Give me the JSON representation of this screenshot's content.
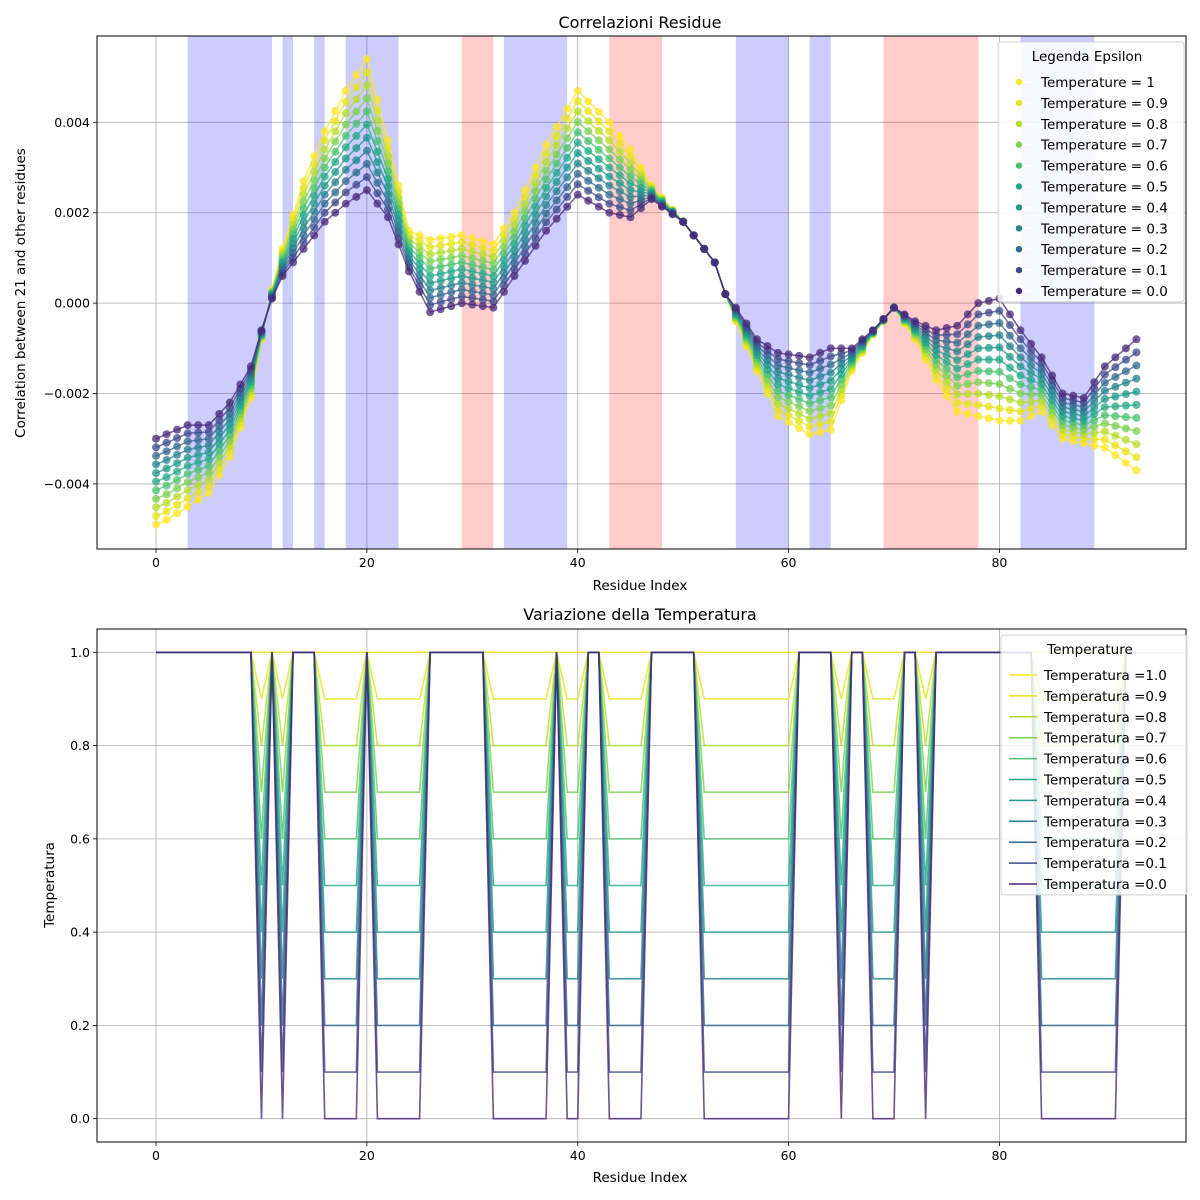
{
  "chart_data": [
    {
      "type": "line",
      "title": "Correlazioni Residue",
      "xlabel": "Residue Index",
      "ylabel": "Correlation between 21 and other residues",
      "xlim": [
        -5.6,
        97.7
      ],
      "ylim": [
        -0.00544,
        0.00591
      ],
      "xticks": [
        0,
        20,
        40,
        60,
        80
      ],
      "yticks": [
        -0.004,
        -0.002,
        0.0,
        0.002,
        0.004
      ],
      "ytick_labels": [
        "−0.004",
        "−0.002",
        "0.000",
        "0.002",
        "0.004"
      ],
      "grid": true,
      "markers": true,
      "legend_title": "Legenda Epsilon",
      "legend_position": "top-right",
      "shaded_regions": [
        {
          "x0": 3,
          "x1": 11,
          "color": "blue"
        },
        {
          "x0": 12,
          "x1": 13,
          "color": "blue"
        },
        {
          "x0": 15,
          "x1": 16,
          "color": "blue"
        },
        {
          "x0": 18,
          "x1": 23,
          "color": "blue"
        },
        {
          "x0": 29,
          "x1": 32,
          "color": "red"
        },
        {
          "x0": 33,
          "x1": 39,
          "color": "blue"
        },
        {
          "x0": 43,
          "x1": 48,
          "color": "red"
        },
        {
          "x0": 55,
          "x1": 60,
          "color": "blue"
        },
        {
          "x0": 62,
          "x1": 64,
          "color": "blue"
        },
        {
          "x0": 69,
          "x1": 78,
          "color": "red"
        },
        {
          "x0": 82,
          "x1": 89,
          "color": "blue"
        }
      ],
      "x_range": [
        0,
        93
      ],
      "curves": {
        "x": [
          0,
          1,
          3,
          5,
          7,
          9,
          10,
          11,
          12,
          14,
          16,
          18,
          20,
          22,
          24,
          26,
          29,
          32,
          34,
          37,
          40,
          43,
          45,
          47,
          50,
          53,
          54,
          55,
          57,
          59,
          62,
          64,
          66,
          68,
          70,
          72,
          74,
          76,
          78,
          80,
          82,
          84,
          86,
          88,
          90,
          93
        ],
        "t1": [
          -0.0049,
          -0.0048,
          -0.0045,
          -0.0042,
          -0.0034,
          -0.0021,
          -0.0008,
          0.0003,
          0.0012,
          0.0027,
          0.0038,
          0.0047,
          0.0054,
          0.0036,
          0.0016,
          0.0014,
          0.0015,
          0.0013,
          0.002,
          0.0035,
          0.0047,
          0.004,
          0.0034,
          0.0026,
          0.0018,
          0.0009,
          0.0002,
          -0.0004,
          -0.0015,
          -0.0025,
          -0.0029,
          -0.0028,
          -0.0015,
          -0.0007,
          -0.0001,
          -0.0008,
          -0.0017,
          -0.0024,
          -0.0025,
          -0.0026,
          -0.0026,
          -0.0024,
          -0.003,
          -0.0031,
          -0.0032,
          -0.0037
        ],
        "t0": [
          -0.003,
          -0.0029,
          -0.0027,
          -0.0027,
          -0.0022,
          -0.0014,
          -0.0006,
          0.0001,
          0.0006,
          0.0012,
          0.0018,
          0.0022,
          0.0025,
          0.0019,
          0.0007,
          -0.0002,
          0.0,
          -0.0001,
          0.0006,
          0.0016,
          0.0024,
          0.002,
          0.0019,
          0.0023,
          0.0018,
          0.0009,
          0.0002,
          -0.0001,
          -0.0008,
          -0.0011,
          -0.0012,
          -0.001,
          -0.001,
          -0.0006,
          -0.0001,
          -0.0004,
          -0.0006,
          -0.0005,
          0.0,
          0.0001,
          -0.0006,
          -0.0012,
          -0.002,
          -0.0021,
          -0.0014,
          -0.0008
        ]
      },
      "series": [
        {
          "name": "Temperature = 1",
          "color": "#fde725"
        },
        {
          "name": "Temperature = 0.9",
          "color": "#e5e419"
        },
        {
          "name": "Temperature = 0.8",
          "color": "#b5de2b"
        },
        {
          "name": "Temperature = 0.7",
          "color": "#7ad151"
        },
        {
          "name": "Temperature = 0.6",
          "color": "#4ac16d"
        },
        {
          "name": "Temperature = 0.5",
          "color": "#22a884"
        },
        {
          "name": "Temperature = 0.4",
          "color": "#1f988b"
        },
        {
          "name": "Temperature = 0.3",
          "color": "#26828e"
        },
        {
          "name": "Temperature = 0.2",
          "color": "#31688e"
        },
        {
          "name": "Temperature = 0.1",
          "color": "#3e4989"
        },
        {
          "name": "Temperature = 0.0",
          "color": "#482878"
        }
      ]
    },
    {
      "type": "line",
      "title": "Variazione della Temperatura",
      "xlabel": "Residue Index",
      "ylabel": "Temperatura",
      "xlim": [
        -5.6,
        97.7
      ],
      "ylim": [
        -0.05,
        1.05
      ],
      "xticks": [
        0,
        20,
        40,
        60,
        80
      ],
      "yticks": [
        0.0,
        0.2,
        0.4,
        0.6,
        0.8,
        1.0
      ],
      "ytick_labels": [
        "0.0",
        "0.2",
        "0.4",
        "0.6",
        "0.8",
        "1.0"
      ],
      "grid": true,
      "legend_title": "Temperature",
      "legend_position": "top-right",
      "x_range": [
        0,
        93
      ],
      "baseline": 1.0,
      "low_regions": [
        [
          10,
          10
        ],
        [
          12,
          12
        ],
        [
          16,
          19
        ],
        [
          21,
          25
        ],
        [
          32,
          37
        ],
        [
          39,
          40
        ],
        [
          43,
          46
        ],
        [
          52,
          60
        ],
        [
          65,
          65
        ],
        [
          68,
          70
        ],
        [
          73,
          73
        ],
        [
          84,
          91
        ]
      ],
      "series": [
        {
          "name": "Temperatura =1.0",
          "level": 1.0,
          "color": "#fde725"
        },
        {
          "name": "Temperatura =0.9",
          "level": 0.9,
          "color": "#e5e419"
        },
        {
          "name": "Temperatura =0.8",
          "level": 0.8,
          "color": "#b5de2b"
        },
        {
          "name": "Temperatura =0.7",
          "level": 0.7,
          "color": "#7ad151"
        },
        {
          "name": "Temperatura =0.6",
          "level": 0.6,
          "color": "#4ac16d"
        },
        {
          "name": "Temperatura =0.5",
          "level": 0.5,
          "color": "#22a884"
        },
        {
          "name": "Temperatura =0.4",
          "level": 0.4,
          "color": "#1f988b"
        },
        {
          "name": "Temperatura =0.3",
          "level": 0.3,
          "color": "#26828e"
        },
        {
          "name": "Temperatura =0.2",
          "level": 0.2,
          "color": "#31688e"
        },
        {
          "name": "Temperatura =0.1",
          "level": 0.1,
          "color": "#3e4989"
        },
        {
          "name": "Temperatura =0.0",
          "level": 0.0,
          "color": "#482878"
        }
      ]
    }
  ]
}
